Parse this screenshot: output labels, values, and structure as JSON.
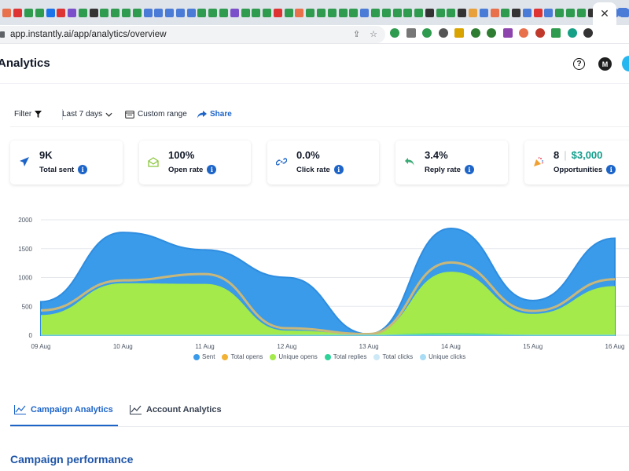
{
  "browser": {
    "url": "app.instantly.ai/app/analytics/overview",
    "active_tab_close": "✕",
    "tab_favicon_colors": [
      "#e8704a",
      "#d33",
      "#2e9b4e",
      "#2e9b4e",
      "#1a73e8",
      "#d33",
      "#7b4fc9",
      "#2e9b4e",
      "#333",
      "#2e9b4e",
      "#2e9b4e",
      "#2e9b4e",
      "#2e9b4e",
      "#4a7bd6",
      "#4a7bd6",
      "#4a7bd6",
      "#4a7bd6",
      "#4a7bd6",
      "#2e9b4e",
      "#2e9b4e",
      "#2e9b4e",
      "#7b4fc9",
      "#2e9b4e",
      "#2e9b4e",
      "#2e9b4e",
      "#d33",
      "#2e9b4e",
      "#e8704a",
      "#2e9b4e",
      "#2e9b4e",
      "#2e9b4e",
      "#2e9b4e",
      "#2e9b4e",
      "#4a7bd6",
      "#2e9b4e",
      "#2e9b4e",
      "#2e9b4e",
      "#2e9b4e",
      "#2e9b4e",
      "#333",
      "#2e9b4e",
      "#2e9b4e",
      "#333",
      "#e8a13a",
      "#4a7bd6",
      "#e8704a",
      "#2e9b4e",
      "#333",
      "#4a7bd6",
      "#d33",
      "#4a7bd6",
      "#2e9b4e",
      "#2e9b4e",
      "#2e9b4e",
      "#333",
      "#4a7bd6",
      "#4a7bd6",
      "#4a7bd6",
      "#d33"
    ],
    "extension_colors": [
      "#2e9b4e",
      "#777",
      "#2e9b4e",
      "#555",
      "#d9a400",
      "#2e7d32",
      "#2e7d32",
      "#8e44ad",
      "#e8704a",
      "#c0392b",
      "#2e9b4e",
      "#16a085",
      "#333"
    ]
  },
  "header": {
    "title": "Analytics",
    "help_glyph": "?",
    "avatar_initial": "M"
  },
  "filters": {
    "filter_label": "Filter",
    "range_label": "Last 7 days",
    "custom_range_label": "Custom range",
    "share_label": "Share"
  },
  "stats": {
    "total_sent": {
      "value": "9K",
      "label": "Total sent"
    },
    "open_rate": {
      "value": "100%",
      "label": "Open rate"
    },
    "click_rate": {
      "value": "0.0%",
      "label": "Click rate"
    },
    "reply_rate": {
      "value": "3.4%",
      "label": "Reply rate"
    },
    "opportunities": {
      "value": "8",
      "value2": "$3,000",
      "label": "Opportunities"
    }
  },
  "info_glyph": "i",
  "chart_data": {
    "type": "area",
    "x": [
      "09 Aug",
      "10 Aug",
      "11 Aug",
      "12 Aug",
      "13 Aug",
      "14 Aug",
      "15 Aug",
      "16 Aug"
    ],
    "ylim": [
      0,
      2000
    ],
    "yticks": [
      "0",
      "500",
      "1000",
      "1500",
      "2000"
    ],
    "grid": true,
    "legend_position": "bottom",
    "series": [
      {
        "name": "Sent",
        "color": "#3a9bea",
        "values": [
          580,
          1780,
          1480,
          1000,
          20,
          1850,
          600,
          1680
        ]
      },
      {
        "name": "Total opens",
        "color": "#f2b233",
        "values": [
          430,
          950,
          1060,
          120,
          20,
          1260,
          420,
          970
        ]
      },
      {
        "name": "Unique opens",
        "color": "#a3ea4a",
        "values": [
          350,
          900,
          890,
          80,
          20,
          1100,
          370,
          850
        ]
      },
      {
        "name": "Total replies",
        "color": "#2ed39a",
        "values": [
          0,
          0,
          0,
          0,
          0,
          20,
          0,
          0
        ]
      },
      {
        "name": "Total clicks",
        "color": "#cde9f7",
        "values": [
          0,
          0,
          0,
          0,
          0,
          0,
          0,
          0
        ]
      },
      {
        "name": "Unique clicks",
        "color": "#a9dcf5",
        "values": [
          0,
          0,
          0,
          0,
          0,
          0,
          0,
          0
        ]
      }
    ]
  },
  "tabs": {
    "campaign": "Campaign Analytics",
    "account": "Account Analytics"
  },
  "section": {
    "title": "Campaign performance"
  }
}
